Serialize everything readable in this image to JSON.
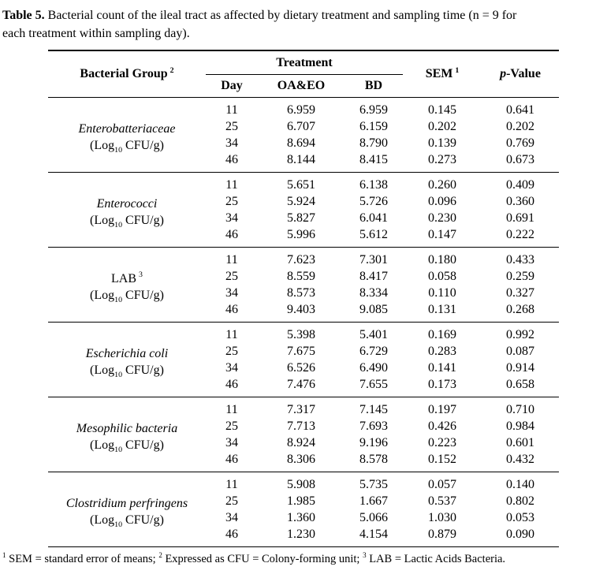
{
  "caption": {
    "label": "Table 5.",
    "line1": "Bacterial count of the ileal tract as affected by dietary treatment and sampling time (n = 9 for",
    "line2": "each treatment within sampling day)."
  },
  "table": {
    "header": {
      "bacterial_group": {
        "text": "Bacterial Group",
        "sup": "2"
      },
      "treatment": "Treatment",
      "subcols": [
        "Day",
        "OA&EO",
        "BD"
      ],
      "sem": {
        "text": "SEM",
        "sup": "1"
      },
      "p_value": {
        "italic": "p",
        "rest": "-Value"
      }
    },
    "unit": {
      "pre": "(Log",
      "sub": "10",
      "post": " CFU/g)"
    },
    "groups": [
      {
        "name": "Enterobatteriaceae",
        "italic": true,
        "rows": [
          {
            "day": "11",
            "oaeo": "6.959",
            "bd": "6.959",
            "sem": "0.145",
            "p": "0.641"
          },
          {
            "day": "25",
            "oaeo": "6.707",
            "bd": "6.159",
            "sem": "0.202",
            "p": "0.202"
          },
          {
            "day": "34",
            "oaeo": "8.694",
            "bd": "8.790",
            "sem": "0.139",
            "p": "0.769"
          },
          {
            "day": "46",
            "oaeo": "8.144",
            "bd": "8.415",
            "sem": "0.273",
            "p": "0.673"
          }
        ]
      },
      {
        "name": "Enterococci",
        "italic": true,
        "rows": [
          {
            "day": "11",
            "oaeo": "5.651",
            "bd": "6.138",
            "sem": "0.260",
            "p": "0.409"
          },
          {
            "day": "25",
            "oaeo": "5.924",
            "bd": "5.726",
            "sem": "0.096",
            "p": "0.360"
          },
          {
            "day": "34",
            "oaeo": "5.827",
            "bd": "6.041",
            "sem": "0.230",
            "p": "0.691"
          },
          {
            "day": "46",
            "oaeo": "5.996",
            "bd": "5.612",
            "sem": "0.147",
            "p": "0.222"
          }
        ]
      },
      {
        "name": "LAB",
        "sup": "3",
        "italic": false,
        "rows": [
          {
            "day": "11",
            "oaeo": "7.623",
            "bd": "7.301",
            "sem": "0.180",
            "p": "0.433"
          },
          {
            "day": "25",
            "oaeo": "8.559",
            "bd": "8.417",
            "sem": "0.058",
            "p": "0.259"
          },
          {
            "day": "34",
            "oaeo": "8.573",
            "bd": "8.334",
            "sem": "0.110",
            "p": "0.327"
          },
          {
            "day": "46",
            "oaeo": "9.403",
            "bd": "9.085",
            "sem": "0.131",
            "p": "0.268"
          }
        ]
      },
      {
        "name": "Escherichia coli",
        "italic": true,
        "rows": [
          {
            "day": "11",
            "oaeo": "5.398",
            "bd": "5.401",
            "sem": "0.169",
            "p": "0.992"
          },
          {
            "day": "25",
            "oaeo": "7.675",
            "bd": "6.729",
            "sem": "0.283",
            "p": "0.087"
          },
          {
            "day": "34",
            "oaeo": "6.526",
            "bd": "6.490",
            "sem": "0.141",
            "p": "0.914"
          },
          {
            "day": "46",
            "oaeo": "7.476",
            "bd": "7.655",
            "sem": "0.173",
            "p": "0.658"
          }
        ]
      },
      {
        "name": "Mesophilic bacteria",
        "italic": true,
        "rows": [
          {
            "day": "11",
            "oaeo": "7.317",
            "bd": "7.145",
            "sem": "0.197",
            "p": "0.710"
          },
          {
            "day": "25",
            "oaeo": "7.713",
            "bd": "7.693",
            "sem": "0.426",
            "p": "0.984"
          },
          {
            "day": "34",
            "oaeo": "8.924",
            "bd": "9.196",
            "sem": "0.223",
            "p": "0.601"
          },
          {
            "day": "46",
            "oaeo": "8.306",
            "bd": "8.578",
            "sem": "0.152",
            "p": "0.432"
          }
        ]
      },
      {
        "name": "Clostridium perfringens",
        "italic": true,
        "rows": [
          {
            "day": "11",
            "oaeo": "5.908",
            "bd": "5.735",
            "sem": "0.057",
            "p": "0.140"
          },
          {
            "day": "25",
            "oaeo": "1.985",
            "bd": "1.667",
            "sem": "0.537",
            "p": "0.802"
          },
          {
            "day": "34",
            "oaeo": "1.360",
            "bd": "5.066",
            "sem": "1.030",
            "p": "0.053"
          },
          {
            "day": "46",
            "oaeo": "1.230",
            "bd": "4.154",
            "sem": "0.879",
            "p": "0.090"
          }
        ]
      }
    ]
  },
  "footnote": {
    "parts": [
      {
        "sup": "1",
        "text": " SEM = standard error of means; "
      },
      {
        "sup": "2",
        "text": " Expressed as CFU = Colony-forming unit; "
      },
      {
        "sup": "3",
        "text": " LAB = Lactic Acids Bacteria."
      }
    ]
  }
}
